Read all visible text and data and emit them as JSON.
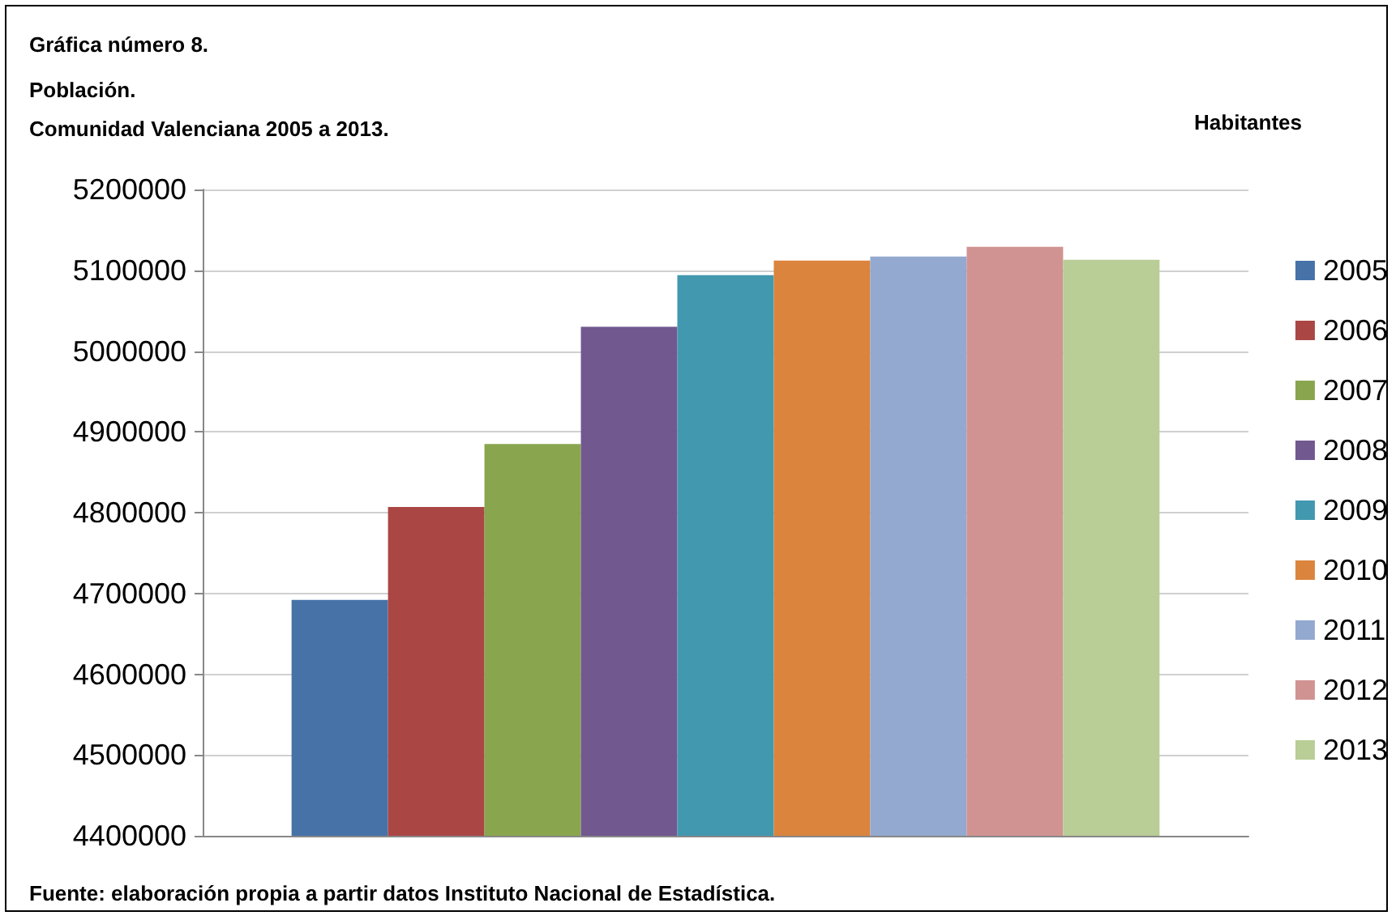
{
  "chart_data": {
    "type": "bar",
    "title": "Gráfica número 8.",
    "subtitle": "Población.\nComunidad Valenciana 2005 a 2013.",
    "ylabel": "Habitantes",
    "categories": [
      null
    ],
    "series": [
      {
        "name": "2005",
        "color": "#4672a8",
        "values": [
          4692000
        ]
      },
      {
        "name": "2006",
        "color": "#aa4644",
        "values": [
          4807000
        ]
      },
      {
        "name": "2007",
        "color": "#89a54e",
        "values": [
          4885000
        ]
      },
      {
        "name": "2008",
        "color": "#71588f",
        "values": [
          5030000
        ]
      },
      {
        "name": "2009",
        "color": "#4198af",
        "values": [
          5094000
        ]
      },
      {
        "name": "2010",
        "color": "#db843d",
        "values": [
          5112000
        ]
      },
      {
        "name": "2011",
        "color": "#93a9cf",
        "values": [
          5117000
        ]
      },
      {
        "name": "2012",
        "color": "#d19392",
        "values": [
          5129000
        ]
      },
      {
        "name": "2013",
        "color": "#b9cd96",
        "values": [
          5113000
        ]
      }
    ],
    "ylim": [
      4400000,
      5200000
    ],
    "yticks": [
      4400000,
      4500000,
      4600000,
      4700000,
      4800000,
      4900000,
      5000000,
      5100000,
      5200000
    ],
    "grid": "y",
    "legend": "right",
    "annotations": [
      "Fuente: elaboración propia a partir datos Instituto Nacional de Estadística."
    ]
  }
}
